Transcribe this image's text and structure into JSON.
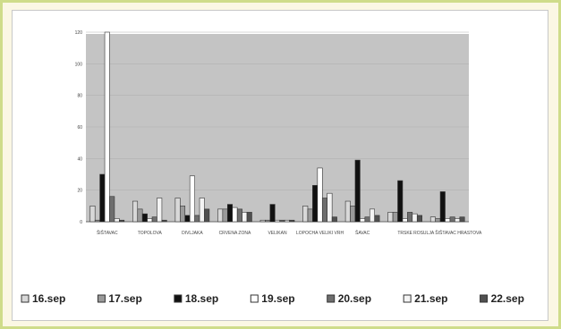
{
  "chart_data": {
    "type": "bar",
    "categories": [
      "ŠIŠTAVAC",
      "TOPOLOVA",
      "DIVLJAKA",
      "CRVENA ZONA",
      "VELIKAN",
      "LOPOCHA VELIKI VRH",
      "ŠAVAC",
      "TRSKE",
      "ROSULJA ŠIŠTAVAC HRASTOVA"
    ],
    "series": [
      {
        "name": "16.sep",
        "color": "#d8d8d8",
        "values": [
          10,
          13,
          15,
          8,
          1,
          10,
          13,
          6,
          3
        ]
      },
      {
        "name": "17.sep",
        "color": "#9a9a9a",
        "values": [
          1,
          8,
          10,
          8,
          1,
          8,
          10,
          6,
          2
        ]
      },
      {
        "name": "18.sep",
        "color": "#111111",
        "values": [
          30,
          5,
          4,
          11,
          11,
          23,
          39,
          26,
          19
        ]
      },
      {
        "name": "19.sep",
        "color": "#ffffff",
        "values": [
          120,
          2,
          29,
          9,
          1,
          34,
          2,
          2,
          2
        ]
      },
      {
        "name": "20.sep",
        "color": "#6e6e6e",
        "values": [
          16,
          3,
          4,
          8,
          1,
          15,
          3,
          6,
          3
        ]
      },
      {
        "name": "21.sep",
        "color": "#f4f4f4",
        "values": [
          2,
          15,
          15,
          6,
          1,
          18,
          8,
          5,
          2
        ]
      },
      {
        "name": "22.sep",
        "color": "#505050",
        "values": [
          1,
          1,
          8,
          6,
          1,
          3,
          4,
          4,
          3
        ]
      }
    ],
    "ylim": [
      0,
      120
    ],
    "yticks": [
      0,
      20,
      40,
      60,
      80,
      100,
      120
    ],
    "grid": true,
    "legend": "bottom"
  }
}
